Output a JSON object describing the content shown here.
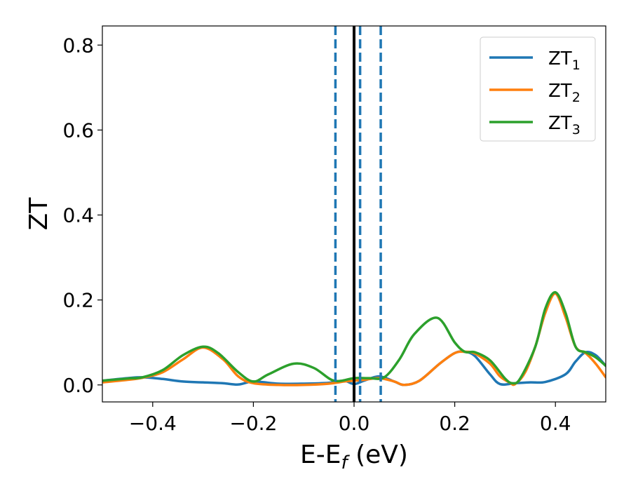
{
  "chart_data": {
    "type": "line",
    "xlabel": {
      "main": "E-E",
      "sub": "f",
      "unit": " (eV)"
    },
    "ylabel": "ZT",
    "xlim": [
      -0.5,
      0.5
    ],
    "ylim": [
      -0.04,
      0.845
    ],
    "xticks": [
      {
        "value": -0.4,
        "label": "−0.4"
      },
      {
        "value": -0.2,
        "label": "−0.2"
      },
      {
        "value": 0.0,
        "label": "0.0"
      },
      {
        "value": 0.2,
        "label": "0.2"
      },
      {
        "value": 0.4,
        "label": "0.4"
      }
    ],
    "yticks": [
      {
        "value": 0.0,
        "label": "0.0"
      },
      {
        "value": 0.2,
        "label": "0.2"
      },
      {
        "value": 0.4,
        "label": "0.4"
      },
      {
        "value": 0.6,
        "label": "0.6"
      },
      {
        "value": 0.8,
        "label": "0.8"
      }
    ],
    "grid": false,
    "legend_position": "top-right",
    "vertical_lines": [
      {
        "x": 0.0,
        "style": "solid",
        "color": "#000000"
      },
      {
        "x": -0.037,
        "style": "dashed",
        "color": "#1f77b4"
      },
      {
        "x": 0.012,
        "style": "dashed",
        "color": "#1f77b4"
      },
      {
        "x": 0.053,
        "style": "dashed",
        "color": "#1f77b4"
      }
    ],
    "series": [
      {
        "name": "ZT",
        "sub": "1",
        "color": "#1f77b4",
        "x": [
          -0.5,
          -0.45,
          -0.42,
          -0.38,
          -0.34,
          -0.3,
          -0.26,
          -0.23,
          -0.2,
          -0.15,
          -0.1,
          -0.05,
          -0.02,
          0.0,
          0.02,
          0.05,
          0.08,
          0.1,
          0.13,
          0.17,
          0.2,
          0.22,
          0.24,
          0.27,
          0.29,
          0.32,
          0.35,
          0.38,
          0.42,
          0.44,
          0.46,
          0.48,
          0.5
        ],
        "y": [
          0.01,
          0.016,
          0.018,
          0.014,
          0.008,
          0.006,
          0.004,
          0.001,
          0.008,
          0.003,
          0.003,
          0.005,
          0.01,
          0.002,
          0.01,
          0.02,
          0.008,
          0.0,
          0.01,
          0.05,
          0.075,
          0.078,
          0.068,
          0.025,
          0.002,
          0.004,
          0.006,
          0.007,
          0.025,
          0.055,
          0.077,
          0.07,
          0.045
        ]
      },
      {
        "name": "ZT",
        "sub": "2",
        "color": "#ff7f0e",
        "x": [
          -0.5,
          -0.45,
          -0.42,
          -0.38,
          -0.34,
          -0.3,
          -0.26,
          -0.23,
          -0.2,
          -0.15,
          -0.1,
          -0.05,
          -0.02,
          0.0,
          0.02,
          0.05,
          0.08,
          0.1,
          0.13,
          0.17,
          0.2,
          0.22,
          0.24,
          0.27,
          0.29,
          0.31,
          0.32,
          0.34,
          0.36,
          0.38,
          0.4,
          0.42,
          0.44,
          0.46,
          0.48,
          0.5
        ],
        "y": [
          0.006,
          0.012,
          0.017,
          0.03,
          0.06,
          0.088,
          0.06,
          0.02,
          0.004,
          0.0,
          0.0,
          0.003,
          0.008,
          0.01,
          0.012,
          0.016,
          0.008,
          0.0,
          0.01,
          0.05,
          0.075,
          0.078,
          0.074,
          0.05,
          0.02,
          0.005,
          0.002,
          0.03,
          0.09,
          0.17,
          0.215,
          0.16,
          0.09,
          0.075,
          0.05,
          0.018
        ]
      },
      {
        "name": "ZT",
        "sub": "3",
        "color": "#2ca02c",
        "x": [
          -0.5,
          -0.45,
          -0.42,
          -0.38,
          -0.34,
          -0.3,
          -0.27,
          -0.23,
          -0.2,
          -0.17,
          -0.12,
          -0.08,
          -0.04,
          0.0,
          0.03,
          0.06,
          0.09,
          0.12,
          0.165,
          0.2,
          0.22,
          0.24,
          0.27,
          0.3,
          0.315,
          0.33,
          0.36,
          0.38,
          0.4,
          0.42,
          0.44,
          0.46,
          0.48,
          0.5
        ],
        "y": [
          0.01,
          0.015,
          0.018,
          0.035,
          0.07,
          0.09,
          0.075,
          0.03,
          0.008,
          0.025,
          0.05,
          0.04,
          0.01,
          0.016,
          0.016,
          0.018,
          0.06,
          0.12,
          0.158,
          0.1,
          0.078,
          0.077,
          0.058,
          0.015,
          0.004,
          0.015,
          0.09,
          0.18,
          0.218,
          0.17,
          0.09,
          0.077,
          0.065,
          0.045
        ]
      }
    ]
  }
}
